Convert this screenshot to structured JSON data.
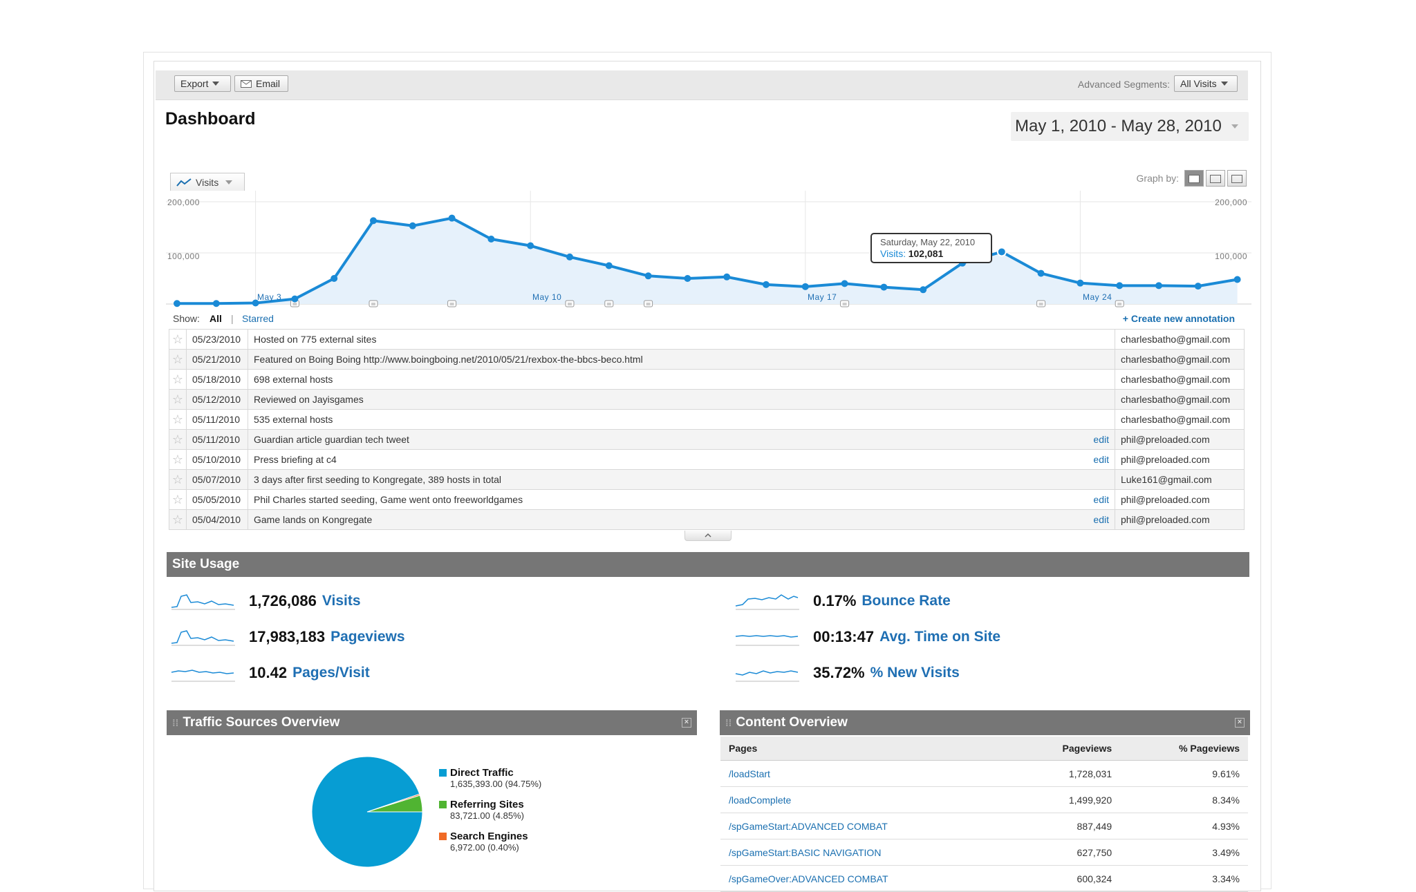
{
  "toolbar": {
    "export_label": "Export",
    "email_label": "Email",
    "segments_label": "Advanced Segments:",
    "segments_value": "All Visits"
  },
  "page_title": "Dashboard",
  "date_range": "May 1, 2010 - May 28, 2010",
  "graph": {
    "metric_tab": "Visits",
    "graph_by_label": "Graph by:",
    "y_tick_200k": "200,000",
    "y_tick_100k": "100,000",
    "x_labels": [
      "May 3",
      "May 10",
      "May 17",
      "May 24"
    ],
    "tooltip_date": "Saturday, May 22, 2010",
    "tooltip_metric": "Visits:",
    "tooltip_value": "102,081",
    "accent_color": "#1a8ad6"
  },
  "chart_data": {
    "type": "area",
    "x": [
      "May 1",
      "May 2",
      "May 3",
      "May 4",
      "May 5",
      "May 6",
      "May 7",
      "May 8",
      "May 9",
      "May 10",
      "May 11",
      "May 12",
      "May 13",
      "May 14",
      "May 15",
      "May 16",
      "May 17",
      "May 18",
      "May 19",
      "May 20",
      "May 21",
      "May 22",
      "May 23",
      "May 24",
      "May 25",
      "May 26",
      "May 27",
      "May 28"
    ],
    "series": [
      {
        "name": "Visits",
        "values": [
          1000,
          1000,
          2000,
          10000,
          50000,
          163000,
          153000,
          168000,
          127000,
          114000,
          92000,
          75000,
          55000,
          50000,
          53000,
          38000,
          34000,
          40000,
          33000,
          28000,
          80000,
          102081,
          60000,
          41000,
          36000,
          36000,
          35000,
          48000
        ]
      }
    ],
    "ylim": [
      0,
      200000
    ],
    "grid": true,
    "annotation_markers_x": [
      3,
      5,
      7,
      10,
      11,
      12,
      17,
      22,
      24
    ]
  },
  "annotations": {
    "show_label": "Show:",
    "filter_all": "All",
    "filter_sep": "|",
    "filter_starred": "Starred",
    "create_link": "+ Create new annotation",
    "rows": [
      {
        "date": "05/23/2010",
        "note": "Hosted on 775 external sites",
        "edit": "",
        "user": "charlesbatho@gmail.com"
      },
      {
        "date": "05/21/2010",
        "note": "Featured on Boing Boing http://www.boingboing.net/2010/05/21/rexbox-the-bbcs-beco.html",
        "edit": "",
        "user": "charlesbatho@gmail.com"
      },
      {
        "date": "05/18/2010",
        "note": "698 external hosts",
        "edit": "",
        "user": "charlesbatho@gmail.com"
      },
      {
        "date": "05/12/2010",
        "note": "Reviewed on Jayisgames",
        "edit": "",
        "user": "charlesbatho@gmail.com"
      },
      {
        "date": "05/11/2010",
        "note": "535 external hosts",
        "edit": "",
        "user": "charlesbatho@gmail.com"
      },
      {
        "date": "05/11/2010",
        "note": "Guardian article guardian tech tweet",
        "edit": "edit",
        "user": "phil@preloaded.com"
      },
      {
        "date": "05/10/2010",
        "note": "Press briefing at c4",
        "edit": "edit",
        "user": "phil@preloaded.com"
      },
      {
        "date": "05/07/2010",
        "note": "3 days after first seeding to Kongregate, 389 hosts in total",
        "edit": "",
        "user": "Luke161@gmail.com"
      },
      {
        "date": "05/05/2010",
        "note": "Phil Charles started seeding, Game went onto freeworldgames",
        "edit": "edit",
        "user": "phil@preloaded.com"
      },
      {
        "date": "05/04/2010",
        "note": "Game lands on Kongregate",
        "edit": "edit",
        "user": "phil@preloaded.com"
      }
    ]
  },
  "site_usage": {
    "title": "Site Usage",
    "metrics": [
      {
        "value": "1,726,086",
        "label": "Visits"
      },
      {
        "value": "17,983,183",
        "label": "Pageviews"
      },
      {
        "value": "10.42",
        "label": "Pages/Visit"
      },
      {
        "value": "0.17%",
        "label": "Bounce Rate"
      },
      {
        "value": "00:13:47",
        "label": "Avg. Time on Site"
      },
      {
        "value": "35.72%",
        "label": "% New Visits"
      }
    ]
  },
  "traffic_sources": {
    "title": "Traffic Sources Overview",
    "pie": [
      {
        "name": "Direct Traffic",
        "detail": "1,635,393.00 (94.75%)",
        "share": 94.75,
        "color": "#079dd3"
      },
      {
        "name": "Referring Sites",
        "detail": "83,721.00 (4.85%)",
        "share": 4.85,
        "color": "#50b432"
      },
      {
        "name": "Search Engines",
        "detail": "6,972.00 (0.40%)",
        "share": 0.4,
        "color": "#f06a25"
      }
    ]
  },
  "content_overview": {
    "title": "Content Overview",
    "headers": [
      "Pages",
      "Pageviews",
      "% Pageviews"
    ],
    "rows": [
      [
        "/loadStart",
        "1,728,031",
        "9.61%"
      ],
      [
        "/loadComplete",
        "1,499,920",
        "8.34%"
      ],
      [
        "/spGameStart:ADVANCED COMBAT",
        "887,449",
        "4.93%"
      ],
      [
        "/spGameStart:BASIC NAVIGATION",
        "627,750",
        "3.49%"
      ],
      [
        "/spGameOver:ADVANCED COMBAT",
        "600,324",
        "3.34%"
      ]
    ]
  }
}
